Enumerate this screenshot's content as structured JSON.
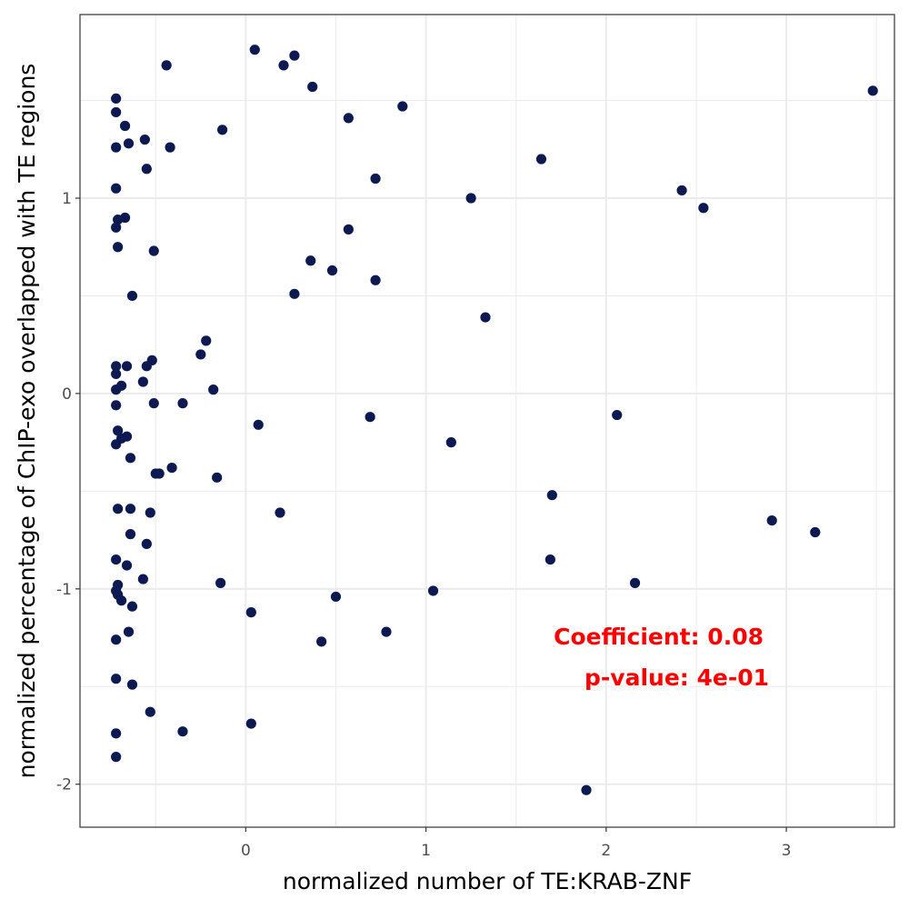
{
  "chart_data": {
    "type": "scatter",
    "xlabel": "normalized number of TE:KRAB-ZNF",
    "ylabel": "normalized percentage of ChIP-exo overlapped with TE regions",
    "xlim": [
      -0.92,
      3.6
    ],
    "ylim": [
      -2.22,
      1.94
    ],
    "x_ticks": [
      0,
      1,
      2,
      3
    ],
    "y_ticks": [
      -2,
      -1,
      0,
      1
    ],
    "x_tick_labels": [
      "0",
      "1",
      "2",
      "3"
    ],
    "y_tick_labels": [
      "-2",
      "-1",
      "0",
      "1"
    ],
    "grid": true,
    "legend": "none",
    "point_color": "#0d1a52",
    "annotation_color": "#ff0000",
    "annotations": [
      "Coefficient: 0.08",
      "p-value: 4e-01"
    ],
    "points": [
      {
        "x": 0.05,
        "y": 1.76
      },
      {
        "x": 0.27,
        "y": 1.73
      },
      {
        "x": 0.21,
        "y": 1.68
      },
      {
        "x": -0.44,
        "y": 1.68
      },
      {
        "x": 0.37,
        "y": 1.57
      },
      {
        "x": 3.48,
        "y": 1.55
      },
      {
        "x": -0.72,
        "y": 1.51
      },
      {
        "x": 0.87,
        "y": 1.47
      },
      {
        "x": -0.72,
        "y": 1.44
      },
      {
        "x": 0.57,
        "y": 1.41
      },
      {
        "x": -0.67,
        "y": 1.37
      },
      {
        "x": -0.13,
        "y": 1.35
      },
      {
        "x": -0.56,
        "y": 1.3
      },
      {
        "x": -0.65,
        "y": 1.28
      },
      {
        "x": -0.72,
        "y": 1.26
      },
      {
        "x": -0.42,
        "y": 1.26
      },
      {
        "x": 1.64,
        "y": 1.2
      },
      {
        "x": -0.55,
        "y": 1.15
      },
      {
        "x": 0.72,
        "y": 1.1
      },
      {
        "x": -0.72,
        "y": 1.05
      },
      {
        "x": 2.42,
        "y": 1.04
      },
      {
        "x": 1.25,
        "y": 1.0
      },
      {
        "x": 2.54,
        "y": 0.95
      },
      {
        "x": -0.71,
        "y": 0.89
      },
      {
        "x": -0.67,
        "y": 0.9
      },
      {
        "x": -0.72,
        "y": 0.85
      },
      {
        "x": 0.57,
        "y": 0.84
      },
      {
        "x": -0.71,
        "y": 0.75
      },
      {
        "x": -0.51,
        "y": 0.73
      },
      {
        "x": 0.36,
        "y": 0.68
      },
      {
        "x": 0.48,
        "y": 0.63
      },
      {
        "x": 0.72,
        "y": 0.58
      },
      {
        "x": 0.27,
        "y": 0.51
      },
      {
        "x": -0.63,
        "y": 0.5
      },
      {
        "x": 1.33,
        "y": 0.39
      },
      {
        "x": -0.22,
        "y": 0.27
      },
      {
        "x": -0.25,
        "y": 0.2
      },
      {
        "x": -0.52,
        "y": 0.17
      },
      {
        "x": -0.72,
        "y": 0.14
      },
      {
        "x": -0.66,
        "y": 0.14
      },
      {
        "x": -0.55,
        "y": 0.14
      },
      {
        "x": -0.72,
        "y": 0.1
      },
      {
        "x": -0.57,
        "y": 0.06
      },
      {
        "x": -0.69,
        "y": 0.04
      },
      {
        "x": -0.72,
        "y": 0.02
      },
      {
        "x": -0.18,
        "y": 0.02
      },
      {
        "x": -0.51,
        "y": -0.05
      },
      {
        "x": -0.35,
        "y": -0.05
      },
      {
        "x": -0.72,
        "y": -0.06
      },
      {
        "x": 0.69,
        "y": -0.12
      },
      {
        "x": 2.06,
        "y": -0.11
      },
      {
        "x": 0.07,
        "y": -0.16
      },
      {
        "x": -0.71,
        "y": -0.19
      },
      {
        "x": -0.69,
        "y": -0.23
      },
      {
        "x": -0.66,
        "y": -0.22
      },
      {
        "x": -0.72,
        "y": -0.26
      },
      {
        "x": 1.14,
        "y": -0.25
      },
      {
        "x": -0.64,
        "y": -0.33
      },
      {
        "x": -0.41,
        "y": -0.38
      },
      {
        "x": -0.5,
        "y": -0.41
      },
      {
        "x": -0.48,
        "y": -0.41
      },
      {
        "x": -0.16,
        "y": -0.43
      },
      {
        "x": 1.7,
        "y": -0.52
      },
      {
        "x": -0.71,
        "y": -0.59
      },
      {
        "x": -0.64,
        "y": -0.59
      },
      {
        "x": -0.53,
        "y": -0.61
      },
      {
        "x": 0.19,
        "y": -0.61
      },
      {
        "x": 2.92,
        "y": -0.65
      },
      {
        "x": 3.16,
        "y": -0.71
      },
      {
        "x": -0.64,
        "y": -0.72
      },
      {
        "x": -0.55,
        "y": -0.77
      },
      {
        "x": 1.69,
        "y": -0.85
      },
      {
        "x": -0.72,
        "y": -0.85
      },
      {
        "x": -0.66,
        "y": -0.88
      },
      {
        "x": -0.57,
        "y": -0.95
      },
      {
        "x": 2.16,
        "y": -0.97
      },
      {
        "x": -0.14,
        "y": -0.97
      },
      {
        "x": -0.71,
        "y": -0.98
      },
      {
        "x": -0.72,
        "y": -1.01
      },
      {
        "x": -0.71,
        "y": -1.03
      },
      {
        "x": 1.04,
        "y": -1.01
      },
      {
        "x": -0.69,
        "y": -1.06
      },
      {
        "x": 0.5,
        "y": -1.04
      },
      {
        "x": -0.63,
        "y": -1.09
      },
      {
        "x": 0.03,
        "y": -1.12
      },
      {
        "x": 0.78,
        "y": -1.22
      },
      {
        "x": -0.65,
        "y": -1.22
      },
      {
        "x": -0.72,
        "y": -1.26
      },
      {
        "x": 0.42,
        "y": -1.27
      },
      {
        "x": -0.72,
        "y": -1.46
      },
      {
        "x": -0.63,
        "y": -1.49
      },
      {
        "x": -0.53,
        "y": -1.63
      },
      {
        "x": 0.03,
        "y": -1.69
      },
      {
        "x": -0.35,
        "y": -1.73
      },
      {
        "x": -0.72,
        "y": -1.74
      },
      {
        "x": -0.72,
        "y": -1.86
      },
      {
        "x": 1.89,
        "y": -2.03
      }
    ]
  }
}
